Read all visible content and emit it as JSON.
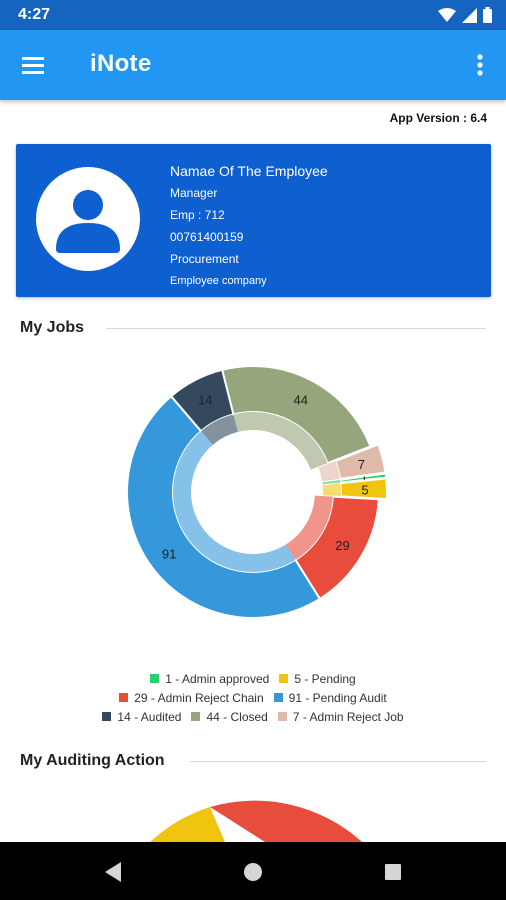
{
  "status_bar": {
    "time": "4:27"
  },
  "app_bar": {
    "title": "iNote"
  },
  "app_version": "App Version : 6.4",
  "employee": {
    "name": "Namae Of The Employee",
    "role": "Manager",
    "emp_no": "Emp : 712",
    "phone": "00761400159",
    "department": "Procurement",
    "company": "Employee company"
  },
  "sections": {
    "my_jobs": "My Jobs",
    "my_auditing_action": "My Auditing Action"
  },
  "chart_data": {
    "type": "pie",
    "style": "donut",
    "slices": [
      {
        "label": "1 - Admin approved",
        "value": 1,
        "color": "#2ecc71"
      },
      {
        "label": "5 - Pending",
        "value": 5,
        "color": "#f1c40f"
      },
      {
        "label": "29 - Admin Reject Chain",
        "value": 29,
        "color": "#e74c3c"
      },
      {
        "label": "91 - Pending Audit",
        "value": 91,
        "color": "#3498db"
      },
      {
        "label": "14 - Audited",
        "value": 14,
        "color": "#34495e"
      },
      {
        "label": "44 - Closed",
        "value": 44,
        "color": "#95a57c"
      },
      {
        "label": "7 - Admin Reject Job",
        "value": 7,
        "color": "#dfb9aa"
      }
    ],
    "legend": "bottom"
  },
  "auditing_chart": {
    "type": "pie",
    "visible_colors": [
      "#e74c3c",
      "#f1c40f"
    ]
  },
  "colors": {
    "status_bar": "#1565c0",
    "app_bar": "#2196f3",
    "profile_card": "#0e5fcf",
    "nav_bar": "#000000"
  }
}
